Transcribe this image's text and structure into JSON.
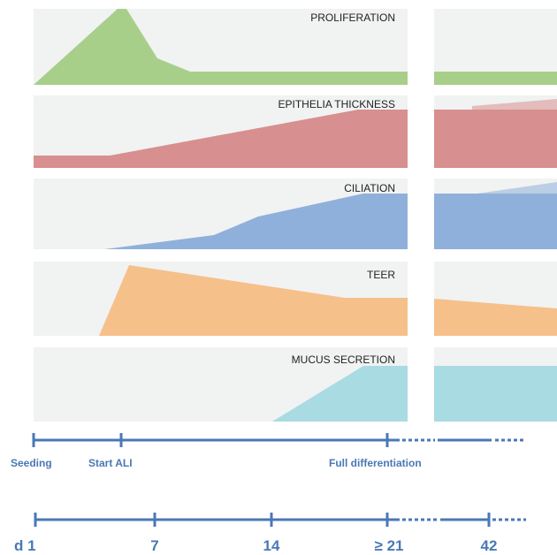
{
  "panels": [
    {
      "label": "PROLIFERATION",
      "color": "#a8cf8a"
    },
    {
      "label": "EPITHELIA THICKNESS",
      "color": "#d88f8f"
    },
    {
      "label": "CILIATION",
      "color": "#8fb0da"
    },
    {
      "label": "TEER",
      "color": "#f6c08b"
    },
    {
      "label": "MUCUS SECRETION",
      "color": "#a9dbe3"
    }
  ],
  "milestones": [
    "Seeding",
    "Start ALI",
    "Full differentiation"
  ],
  "days": [
    "d 1",
    "7",
    "14",
    "≥ 21",
    "42"
  ],
  "colors": {
    "panel_bg": "#f1f2f2",
    "timeline": "#4a78b5",
    "text": "#222222"
  }
}
